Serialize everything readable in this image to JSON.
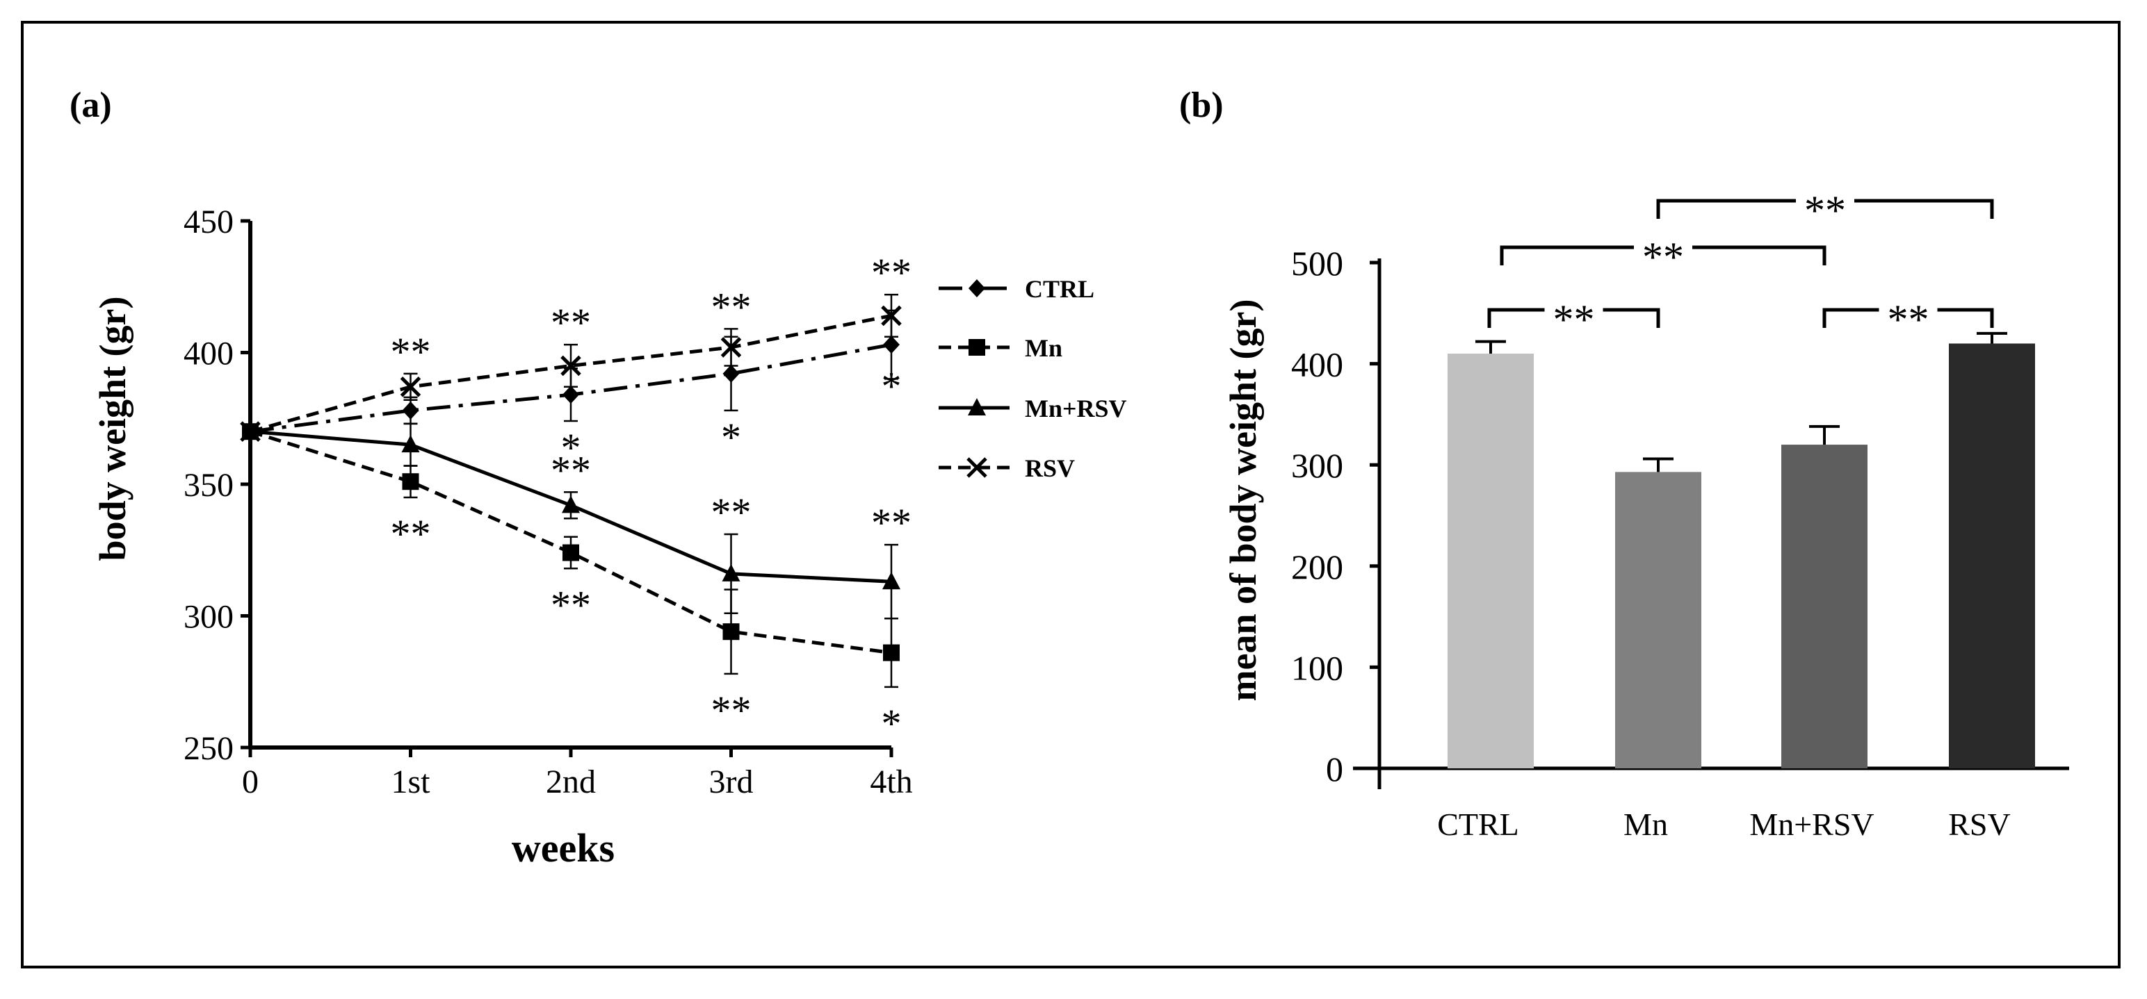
{
  "chart_data": [
    {
      "panel_label": "(a)",
      "type": "line",
      "title": "",
      "xlabel": "weeks",
      "ylabel": "body weight (gr)",
      "categories": [
        "0",
        "1st",
        "2nd",
        "3rd",
        "4th"
      ],
      "ylim": [
        250,
        450
      ],
      "yticks": [
        "250",
        "300",
        "350",
        "400",
        "450"
      ],
      "grid": false,
      "legend_position": "right",
      "series": [
        {
          "name": "CTRL",
          "marker": "diamond",
          "line_style": "dash-dot",
          "values": [
            370,
            378,
            384,
            392,
            403
          ],
          "errors": [
            0,
            5,
            10,
            14,
            13
          ],
          "annotations": [
            "",
            "",
            "*",
            "*",
            "*"
          ]
        },
        {
          "name": "Mn",
          "marker": "square",
          "line_style": "dashed",
          "values": [
            370,
            351,
            324,
            294,
            286
          ],
          "errors": [
            0,
            6,
            6,
            16,
            13
          ],
          "annotations": [
            "",
            "**",
            "**",
            "**",
            "*"
          ]
        },
        {
          "name": "Mn+RSV",
          "marker": "triangle",
          "line_style": "solid",
          "values": [
            370,
            365,
            342,
            316,
            313
          ],
          "errors": [
            0,
            8,
            5,
            15,
            14
          ],
          "annotations": [
            "",
            "",
            "**",
            "**",
            "**"
          ]
        },
        {
          "name": "RSV",
          "marker": "x",
          "line_style": "dashed",
          "values": [
            370,
            387,
            395,
            402,
            414
          ],
          "errors": [
            0,
            5,
            8,
            7,
            8
          ],
          "annotations": [
            "",
            "**",
            "**",
            "**",
            "**"
          ]
        }
      ]
    },
    {
      "panel_label": "(b)",
      "type": "bar",
      "title": "",
      "xlabel": "",
      "ylabel": "mean of body weight (gr)",
      "categories": [
        "CTRL",
        "Mn",
        "Mn+RSV",
        "RSV"
      ],
      "values": [
        410,
        293,
        320,
        420
      ],
      "errors": [
        12,
        13,
        18,
        10
      ],
      "colors": [
        "#c0c0c0",
        "#808080",
        "#5e5e5e",
        "#2a2a2a"
      ],
      "ylim": [
        0,
        500
      ],
      "yticks": [
        "0",
        "100",
        "200",
        "300",
        "400",
        "500"
      ],
      "grid": false,
      "significance": [
        {
          "from": "CTRL",
          "to": "Mn",
          "label": "**"
        },
        {
          "from": "CTRL",
          "to": "Mn+RSV",
          "label": "**"
        },
        {
          "from": "Mn",
          "to": "RSV",
          "label": "**"
        },
        {
          "from": "Mn+RSV",
          "to": "RSV",
          "label": "**"
        }
      ]
    }
  ]
}
